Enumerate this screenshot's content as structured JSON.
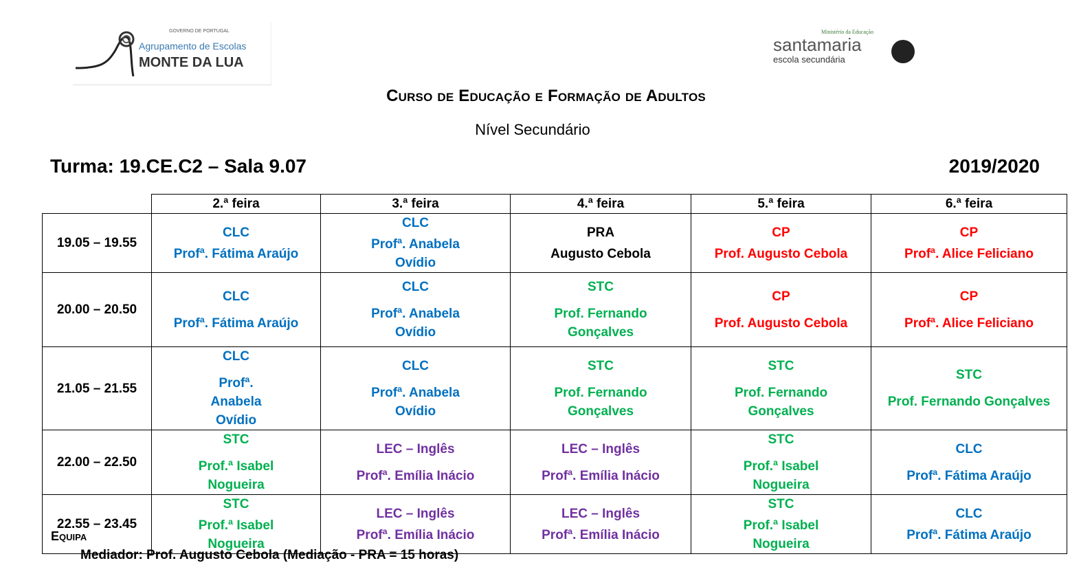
{
  "logos": {
    "left": {
      "text": "Agrupamento de Escolas MONTE DA LUA",
      "small": "GOVERNO DE PORTUGAL"
    },
    "right": {
      "text": "santamaria escola secundária",
      "small": "Ministério da Educação"
    }
  },
  "header": {
    "title": "Curso de Educação e Formação de Adultos",
    "subtitle": "Nível Secundário",
    "turma": "Turma: 19.CE.C2 – Sala 9.07",
    "year": "2019/2020"
  },
  "colors": {
    "blue": "#0070C0",
    "green": "#00B050",
    "red": "#FF0000",
    "purple": "#7030A0"
  },
  "schedule": {
    "days": [
      "2.ª feira",
      "3.ª feira",
      "4.ª feira",
      "5.ª feira",
      "6.ª feira"
    ],
    "rows": [
      {
        "time": "19.05 – 19.55",
        "cells": [
          {
            "subject": "CLC",
            "teacher": "Profª. Fátima Araújo",
            "color": "blue"
          },
          {
            "subject": "CLC",
            "teacher": "Profª. Anabela Ovídio",
            "color": "blue"
          },
          {
            "subject": "PRA",
            "teacher": "Augusto Cebola",
            "color": "black"
          },
          {
            "subject": "CP",
            "teacher": "Prof. Augusto Cebola",
            "color": "red"
          },
          {
            "subject": "CP",
            "teacher": "Profª. Alice Feliciano",
            "color": "red"
          }
        ]
      },
      {
        "time": "20.00 – 20.50",
        "cells": [
          {
            "subject": "CLC",
            "teacher": "Profª. Fátima Araújo",
            "color": "blue"
          },
          {
            "subject": "CLC",
            "teacher": "Profª. Anabela Ovídio",
            "color": "blue"
          },
          {
            "subject": "STC",
            "teacher": "Prof. Fernando Gonçalves",
            "color": "green"
          },
          {
            "subject": "CP",
            "teacher": "Prof. Augusto Cebola",
            "color": "red"
          },
          {
            "subject": "CP",
            "teacher": "Profª. Alice Feliciano",
            "color": "red"
          }
        ]
      },
      {
        "time": "21.05 – 21.55",
        "cells": [
          {
            "subject": "CLC",
            "teacher": "Profª. Anabela Ovídio",
            "color": "blue"
          },
          {
            "subject": "CLC",
            "teacher": "Profª. Anabela Ovídio",
            "color": "blue"
          },
          {
            "subject": "STC",
            "teacher": "Prof. Fernando Gonçalves",
            "color": "green"
          },
          {
            "subject": "STC",
            "teacher": "Prof. Fernando Gonçalves",
            "color": "green"
          },
          {
            "subject": "STC",
            "teacher": "Prof. Fernando Gonçalves",
            "color": "green"
          }
        ]
      },
      {
        "time": "22.00 – 22.50",
        "cells": [
          {
            "subject": "STC",
            "teacher": "Prof.ª Isabel Nogueira",
            "color": "green"
          },
          {
            "subject": "LEC – Inglês",
            "teacher": "Profª. Emília Inácio",
            "color": "purple"
          },
          {
            "subject": "LEC – Inglês",
            "teacher": "Profª. Emília Inácio",
            "color": "purple"
          },
          {
            "subject": "STC",
            "teacher": "Prof.ª Isabel Nogueira",
            "color": "green"
          },
          {
            "subject": "CLC",
            "teacher": "Profª. Fátima Araújo",
            "color": "blue"
          }
        ]
      },
      {
        "time": "22.55 – 23.45",
        "cells": [
          {
            "subject": "STC",
            "teacher": "Prof.ª Isabel Nogueira",
            "color": "green"
          },
          {
            "subject": "LEC – Inglês",
            "teacher": "Profª. Emília Inácio",
            "color": "purple"
          },
          {
            "subject": "LEC – Inglês",
            "teacher": "Profª. Emília Inácio",
            "color": "purple"
          },
          {
            "subject": "STC",
            "teacher": "Prof.ª Isabel Nogueira",
            "color": "green"
          },
          {
            "subject": "CLC",
            "teacher": "Profª. Fátima Araújo",
            "color": "blue"
          }
        ]
      }
    ]
  },
  "team": {
    "heading": "Equipa",
    "mediator": "Mediador: Prof. Augusto Cebola (Mediação - PRA = 15 horas)"
  }
}
